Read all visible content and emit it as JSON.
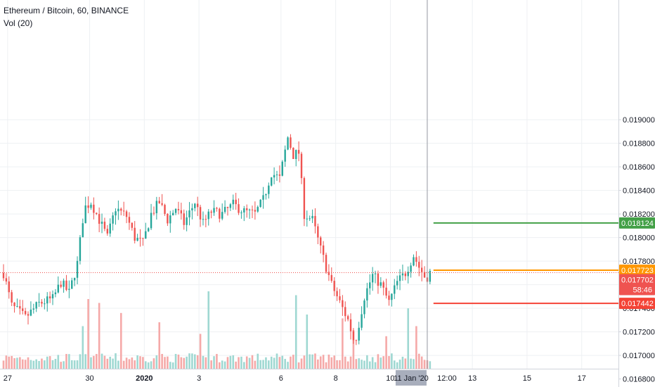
{
  "header": {
    "title": "Ethereum / Bitcoin, 60, BINANCE",
    "indicator": "Vol (20)"
  },
  "colors": {
    "up": "#26a69a",
    "down": "#ef5350",
    "vol_up": "#9fd8d2",
    "vol_down": "#f5a9a8",
    "grid": "#eef0f3",
    "axis": "#d1d4dc",
    "green_line": "#43a047",
    "orange_line": "#ff9800",
    "red_line": "#f44336",
    "current_price": "#ef5350",
    "crosshair_tag": "#a8aebc"
  },
  "chart_data": {
    "type": "candlestick",
    "ylim": [
      0.01678,
      0.01912
    ],
    "y_ticks": [
      "0.019000",
      "0.018800",
      "0.018600",
      "0.018400",
      "0.018200",
      "0.018000",
      "0.017800",
      "0.017600",
      "0.017400",
      "0.017200",
      "0.017000",
      "0.016800"
    ],
    "x_ticks": [
      {
        "label": "27",
        "day": 0.15
      },
      {
        "label": "30",
        "day": 3.15
      },
      {
        "label": "2020",
        "day": 5.15
      },
      {
        "label": "3",
        "day": 7.15
      },
      {
        "label": "6",
        "day": 10.15
      },
      {
        "label": "8",
        "day": 12.15
      },
      {
        "label": "10",
        "day": 14.15
      },
      {
        "label": "13",
        "day": 17.15
      },
      {
        "label": "15",
        "day": 19.15
      },
      {
        "label": "17",
        "day": 21.15
      }
    ],
    "crosshair": {
      "date_label": "11 Jan '20",
      "time_label": "12:00",
      "day": 15.5
    },
    "price_path": [
      [
        0,
        0.0177
      ],
      [
        0.3,
        0.01742
      ],
      [
        0.8,
        0.01732
      ],
      [
        1.3,
        0.01744
      ],
      [
        1.8,
        0.01748
      ],
      [
        2.1,
        0.01762
      ],
      [
        2.4,
        0.01753
      ],
      [
        2.7,
        0.01778
      ],
      [
        2.95,
        0.01825
      ],
      [
        3.2,
        0.0183
      ],
      [
        3.5,
        0.01815
      ],
      [
        3.8,
        0.018
      ],
      [
        4.1,
        0.01825
      ],
      [
        4.5,
        0.01818
      ],
      [
        4.8,
        0.018
      ],
      [
        5.1,
        0.01795
      ],
      [
        5.4,
        0.0182
      ],
      [
        5.7,
        0.0183
      ],
      [
        6.0,
        0.01815
      ],
      [
        6.3,
        0.01825
      ],
      [
        6.6,
        0.01812
      ],
      [
        7.0,
        0.0183
      ],
      [
        7.3,
        0.01812
      ],
      [
        7.6,
        0.01822
      ],
      [
        8.0,
        0.0182
      ],
      [
        8.4,
        0.01828
      ],
      [
        8.8,
        0.01822
      ],
      [
        9.2,
        0.0182
      ],
      [
        9.5,
        0.01832
      ],
      [
        9.8,
        0.01855
      ],
      [
        10.1,
        0.0185
      ],
      [
        10.4,
        0.01885
      ],
      [
        10.6,
        0.0187
      ],
      [
        10.8,
        0.01872
      ],
      [
        11.0,
        0.0182
      ],
      [
        11.3,
        0.01815
      ],
      [
        11.6,
        0.0179
      ],
      [
        12.0,
        0.0176
      ],
      [
        12.3,
        0.01745
      ],
      [
        12.6,
        0.0173
      ],
      [
        12.85,
        0.0171
      ],
      [
        13.2,
        0.0175
      ],
      [
        13.5,
        0.01768
      ],
      [
        13.8,
        0.0176
      ],
      [
        14.1,
        0.01745
      ],
      [
        14.4,
        0.01762
      ],
      [
        14.7,
        0.0177
      ],
      [
        15.0,
        0.01785
      ],
      [
        15.2,
        0.01775
      ],
      [
        15.45,
        0.01765
      ],
      [
        15.65,
        0.01772
      ]
    ],
    "last_day": 15.65,
    "levels": [
      {
        "name": "resistance",
        "value": 0.018124,
        "label": "0.018124",
        "color_key": "green_line"
      },
      {
        "name": "orange-level",
        "value": 0.017723,
        "label": "0.017723",
        "color_key": "orange_line"
      },
      {
        "name": "support",
        "value": 0.017442,
        "label": "0.017442",
        "color_key": "red_line"
      }
    ],
    "current_price": {
      "value": 0.017702,
      "label": "0.017702",
      "countdown": "58:46"
    },
    "volume_spikes": [
      {
        "day": 3.1,
        "v": 0.9
      },
      {
        "day": 3.5,
        "v": 0.85
      },
      {
        "day": 2.9,
        "v": 0.55
      },
      {
        "day": 4.3,
        "v": 0.72
      },
      {
        "day": 5.7,
        "v": 0.6
      },
      {
        "day": 7.5,
        "v": 1.0
      },
      {
        "day": 7.2,
        "v": 0.45
      },
      {
        "day": 10.7,
        "v": 0.95
      },
      {
        "day": 11.1,
        "v": 0.7
      },
      {
        "day": 12.4,
        "v": 0.65
      },
      {
        "day": 12.8,
        "v": 0.5
      },
      {
        "day": 14.0,
        "v": 0.42
      },
      {
        "day": 14.8,
        "v": 0.78
      },
      {
        "day": 15.1,
        "v": 0.55
      }
    ]
  }
}
